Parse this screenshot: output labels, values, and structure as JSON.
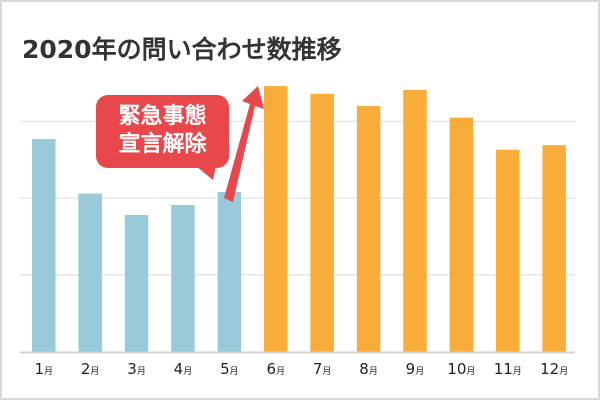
{
  "chart_data": {
    "type": "bar",
    "title": "2020年の問い合わせ数推移",
    "xlabel": "",
    "ylabel": "",
    "categories": [
      "1月",
      "2月",
      "3月",
      "4月",
      "5月",
      "6月",
      "7月",
      "8月",
      "9月",
      "10月",
      "11月",
      "12月"
    ],
    "values": [
      2.77,
      2.06,
      1.78,
      1.91,
      2.08,
      3.46,
      3.36,
      3.2,
      3.41,
      3.05,
      2.63,
      2.69
    ],
    "ylim": [
      0,
      3.5
    ],
    "y_ticks_labeled": false,
    "grid": true,
    "gridlines": [
      1,
      2,
      3
    ],
    "colors": {
      "before": "#98cad9",
      "after": "#f8ad3b",
      "annotation": "#e8474c"
    },
    "highlight_from_index": 5,
    "annotation": {
      "lines": [
        "緊急事態",
        "宣言解除"
      ],
      "target": "6月"
    }
  }
}
